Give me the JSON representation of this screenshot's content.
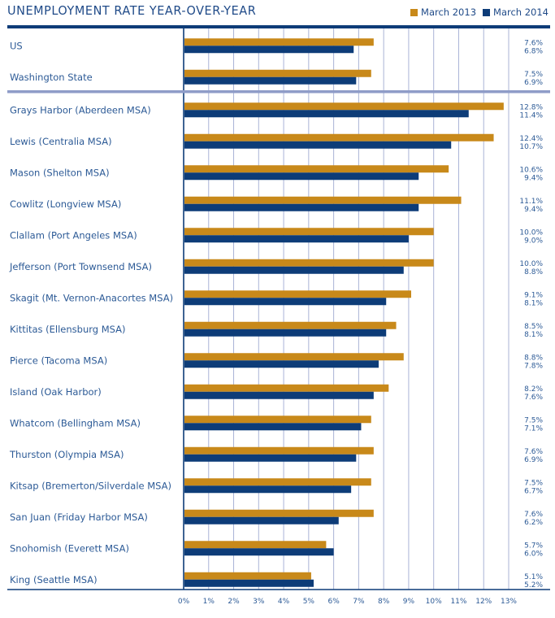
{
  "chart_data": {
    "type": "bar",
    "orientation": "horizontal",
    "title": "UNEMPLOYMENT RATE YEAR-OVER-YEAR",
    "xlabel": "",
    "ylabel": "",
    "xlim": [
      0,
      13
    ],
    "x_ticks": [
      "0%",
      "1%",
      "2%",
      "3%",
      "4%",
      "5%",
      "6%",
      "7%",
      "8%",
      "9%",
      "10%",
      "11%",
      "12%",
      "13%"
    ],
    "grid": true,
    "legend_position": "top-right",
    "categories": [
      "US",
      "Washington State",
      "Grays Harbor (Aberdeen MSA)",
      "Lewis (Centralia MSA)",
      "Mason (Shelton MSA)",
      "Cowlitz (Longview MSA)",
      "Clallam (Port Angeles MSA)",
      "Jefferson (Port Townsend MSA)",
      "Skagit (Mt. Vernon-Anacortes MSA)",
      "Kittitas (Ellensburg MSA)",
      "Pierce (Tacoma MSA)",
      "Island (Oak Harbor)",
      "Whatcom (Bellingham MSA)",
      "Thurston (Olympia MSA)",
      "Kitsap (Bremerton/Silverdale MSA)",
      "San Juan (Friday Harbor MSA)",
      "Snohomish (Everett MSA)",
      "King (Seattle MSA)"
    ],
    "separator_after_index": 1,
    "series": [
      {
        "name": "March 2013",
        "color": "#c8891a",
        "values": [
          7.6,
          7.5,
          12.8,
          12.4,
          10.6,
          11.1,
          10.0,
          10.0,
          9.1,
          8.5,
          8.8,
          8.2,
          7.5,
          7.6,
          7.5,
          7.6,
          5.7,
          5.1
        ],
        "labels": [
          "7.6%",
          "7.5%",
          "12.8%",
          "12.4%",
          "10.6%",
          "11.1%",
          "10.0%",
          "10.0%",
          "9.1%",
          "8.5%",
          "8.8%",
          "8.2%",
          "7.5%",
          "7.6%",
          "7.5%",
          "7.6%",
          "5.7%",
          "5.1%"
        ]
      },
      {
        "name": "March 2014",
        "color": "#0d3c78",
        "values": [
          6.8,
          6.9,
          11.4,
          10.7,
          9.4,
          9.4,
          9.0,
          8.8,
          8.1,
          8.1,
          7.8,
          7.6,
          7.1,
          6.9,
          6.7,
          6.2,
          6.0,
          5.2
        ],
        "labels": [
          "6.8%",
          "6.9%",
          "11.4%",
          "10.7%",
          "9.4%",
          "9.4%",
          "9.0%",
          "8.8%",
          "8.1%",
          "8.1%",
          "7.8%",
          "7.6%",
          "7.1%",
          "6.9%",
          "6.7%",
          "6.2%",
          "6.0%",
          "5.2%"
        ]
      }
    ]
  },
  "colors": {
    "title": "#1f4a88",
    "rule": "#0d3c78",
    "separator": "#8f9cc8",
    "grid": "#a9b3d6",
    "text": "#2c5a96"
  }
}
